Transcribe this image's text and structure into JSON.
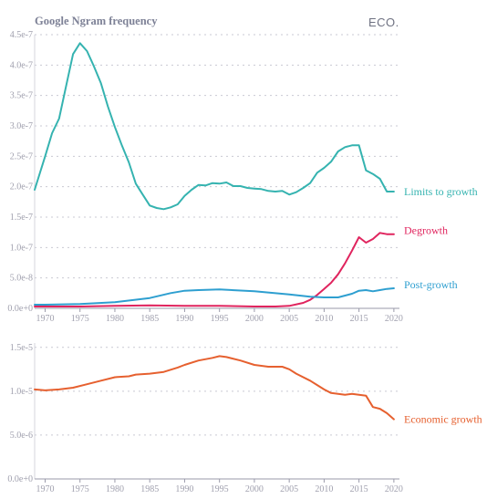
{
  "header": {
    "title": "Google Ngram frequency",
    "logo": "ECO."
  },
  "colors": {
    "limits": "#35b3b0",
    "degrowth": "#e0245e",
    "postgrowth": "#2e9fd0",
    "economic": "#e6602f",
    "grid": "#c9c9d3",
    "axis": "#9a9aaa",
    "tick_text": "#a0a0ae"
  },
  "chart_data": [
    {
      "type": "line",
      "x_ticks": [
        1970,
        1975,
        1980,
        1985,
        1990,
        1995,
        2000,
        2005,
        2010,
        2015,
        2020
      ],
      "x_tick_labels": [
        "1970",
        "1975",
        "1980",
        "1985",
        "1990",
        "1995",
        "2000",
        "2005",
        "2010",
        "2015",
        "2020"
      ],
      "xlim": [
        1968.5,
        2020.8
      ],
      "ylim": [
        0,
        4.5e-07
      ],
      "y_ticks": [
        0,
        5e-08,
        1e-07,
        1.5e-07,
        2e-07,
        2.5e-07,
        3e-07,
        3.5e-07,
        4e-07,
        4.5e-07
      ],
      "y_tick_labels": [
        "0.0e+0",
        "5.0e-8",
        "1.0e-7",
        "1.5e-7",
        "2.0e-7",
        "2.5e-7",
        "3.0e-7",
        "3.5e-7",
        "4.0e-7",
        "4.5e-7"
      ],
      "grid": "horizontal dotted",
      "series": [
        {
          "name": "Limits to growth",
          "color_key": "limits",
          "x": [
            1968.5,
            1970,
            1971,
            1972,
            1973,
            1974,
            1975,
            1976,
            1977,
            1978,
            1979,
            1980,
            1981,
            1982,
            1983,
            1984,
            1985,
            1986,
            1987,
            1988,
            1989,
            1990,
            1991,
            1992,
            1993,
            1994,
            1995,
            1996,
            1997,
            1998,
            1999,
            2000,
            2001,
            2002,
            2003,
            2004,
            2005,
            2006,
            2007,
            2008,
            2009,
            2010,
            2011,
            2012,
            2013,
            2014,
            2015,
            2016,
            2017,
            2018,
            2019,
            2020
          ],
          "values": [
            1.95e-07,
            2.5e-07,
            2.88e-07,
            3.12e-07,
            3.65e-07,
            4.18e-07,
            4.36e-07,
            4.23e-07,
            3.98e-07,
            3.7e-07,
            3.32e-07,
            2.98e-07,
            2.68e-07,
            2.4e-07,
            2.05e-07,
            1.87e-07,
            1.69e-07,
            1.65e-07,
            1.63e-07,
            1.66e-07,
            1.71e-07,
            1.85e-07,
            1.95e-07,
            2.03e-07,
            2.02e-07,
            2.06e-07,
            2.05e-07,
            2.07e-07,
            2.01e-07,
            2.01e-07,
            1.98e-07,
            1.97e-07,
            1.96e-07,
            1.93e-07,
            1.92e-07,
            1.93e-07,
            1.87e-07,
            1.91e-07,
            1.98e-07,
            2.06e-07,
            2.23e-07,
            2.31e-07,
            2.41e-07,
            2.58e-07,
            2.65e-07,
            2.68e-07,
            2.68e-07,
            2.27e-07,
            2.21e-07,
            2.13e-07,
            1.92e-07,
            1.92e-07
          ]
        },
        {
          "name": "Degrowth",
          "color_key": "degrowth",
          "x": [
            1968.5,
            1975,
            1980,
            1985,
            1990,
            1995,
            2000,
            2003,
            2005,
            2007,
            2008,
            2009,
            2010,
            2011,
            2012,
            2013,
            2014,
            2015,
            2016,
            2017,
            2018,
            2019,
            2020
          ],
          "values": [
            3e-09,
            3e-09,
            4e-09,
            5e-09,
            4e-09,
            4e-09,
            3e-09,
            3e-09,
            4e-09,
            9e-09,
            1.4e-08,
            2.2e-08,
            3.2e-08,
            4.2e-08,
            5.6e-08,
            7.4e-08,
            9.5e-08,
            1.17e-07,
            1.08e-07,
            1.14e-07,
            1.24e-07,
            1.22e-07,
            1.22e-07
          ]
        },
        {
          "name": "Post-growth",
          "color_key": "postgrowth",
          "x": [
            1968.5,
            1970,
            1975,
            1980,
            1985,
            1988,
            1990,
            1992,
            1995,
            2000,
            2005,
            2008,
            2010,
            2012,
            2014,
            2015,
            2016,
            2017,
            2018,
            2019,
            2020
          ],
          "values": [
            6e-09,
            6e-09,
            7e-09,
            1e-08,
            1.7e-08,
            2.5e-08,
            2.9e-08,
            3e-08,
            3.1e-08,
            2.8e-08,
            2.3e-08,
            1.9e-08,
            1.8e-08,
            1.8e-08,
            2.4e-08,
            2.9e-08,
            3e-08,
            2.8e-08,
            3e-08,
            3.2e-08,
            3.3e-08
          ]
        }
      ]
    },
    {
      "type": "line",
      "x_ticks": [
        1970,
        1975,
        1980,
        1985,
        1990,
        1995,
        2000,
        2005,
        2010,
        2015,
        2020
      ],
      "x_tick_labels": [
        "1970",
        "1975",
        "1980",
        "1985",
        "1990",
        "1995",
        "2000",
        "2005",
        "2010",
        "2015",
        "2020"
      ],
      "xlim": [
        1968.5,
        2020.8
      ],
      "ylim": [
        0,
        1.55e-05
      ],
      "y_ticks": [
        0,
        5e-06,
        1e-05,
        1.5e-05
      ],
      "y_tick_labels": [
        "0.0e+0",
        "5.0e-6",
        "1.0e-5",
        "1.5e-5"
      ],
      "grid": "horizontal dotted",
      "series": [
        {
          "name": "Economic growth",
          "color_key": "economic",
          "x": [
            1968.5,
            1970,
            1972,
            1974,
            1976,
            1978,
            1980,
            1982,
            1983,
            1985,
            1987,
            1989,
            1990,
            1992,
            1994,
            1995,
            1996,
            1998,
            2000,
            2001,
            2002,
            2004,
            2005,
            2006,
            2008,
            2009,
            2010,
            2011,
            2012,
            2013,
            2014,
            2015,
            2016,
            2017,
            2018,
            2019,
            2020
          ],
          "values": [
            1.02e-05,
            1.01e-05,
            1.02e-05,
            1.04e-05,
            1.08e-05,
            1.12e-05,
            1.16e-05,
            1.17e-05,
            1.19e-05,
            1.2e-05,
            1.22e-05,
            1.27e-05,
            1.3e-05,
            1.35e-05,
            1.38e-05,
            1.4e-05,
            1.39e-05,
            1.35e-05,
            1.3e-05,
            1.29e-05,
            1.28e-05,
            1.28e-05,
            1.25e-05,
            1.2e-05,
            1.12e-05,
            1.07e-05,
            1.02e-05,
            9.8e-06,
            9.7e-06,
            9.6e-06,
            9.7e-06,
            9.6e-06,
            9.5e-06,
            8.2e-06,
            8e-06,
            7.5e-06,
            6.8e-06
          ]
        }
      ]
    }
  ]
}
